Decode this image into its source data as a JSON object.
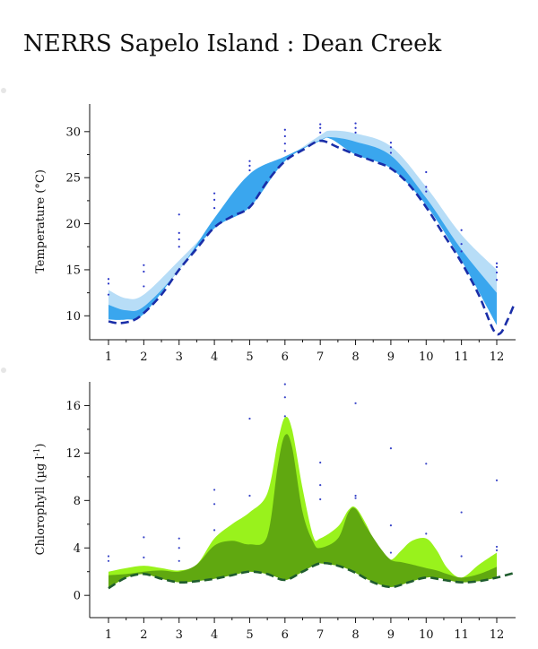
{
  "title": "NERRS Sapelo Island : Dean Creek",
  "chart_data": [
    {
      "type": "area",
      "ylabel": "Temperature (°C)",
      "ylabel_unit": "",
      "xlim": [
        0.8,
        12.5
      ],
      "ylim": [
        7.5,
        33
      ],
      "x_ticks": [
        1,
        2,
        3,
        4,
        5,
        6,
        7,
        8,
        9,
        10,
        11,
        12
      ],
      "x_tick_labels": [
        "1",
        "2",
        "3",
        "4",
        "5",
        "6",
        "7",
        "8",
        "9",
        "10",
        "11",
        "12"
      ],
      "y_ticks": [
        10,
        15,
        20,
        25,
        30
      ],
      "y_tick_labels": [
        "10",
        "15",
        "20",
        "25",
        "30"
      ],
      "colors": {
        "outer": "#b7ddf7",
        "inner": "#3aa6ee",
        "line": "#1a2ea8",
        "dots": "#2a35c8"
      },
      "outer_band": {
        "x": [
          1,
          1.5,
          2,
          3,
          4,
          5,
          6,
          7,
          7.3,
          8,
          9,
          10,
          11,
          12
        ],
        "upper": [
          12.8,
          11.9,
          12.3,
          16,
          20,
          24.5,
          27,
          29.6,
          30.1,
          29.8,
          28.4,
          24,
          18.8,
          15
        ],
        "lower": [
          9.6,
          9.6,
          10.2,
          15,
          19.5,
          21.8,
          26.8,
          29,
          29.2,
          27.5,
          26,
          22,
          16,
          9
        ]
      },
      "inner_band": {
        "x": [
          1,
          1.5,
          2,
          3,
          4,
          5,
          6,
          7,
          7.3,
          8,
          9,
          10,
          11,
          12
        ],
        "upper": [
          11.2,
          10.6,
          11,
          15,
          20.6,
          25.4,
          27.3,
          29.1,
          29.4,
          28.9,
          27.4,
          22.8,
          17.2,
          12.5
        ],
        "lower": [
          9.6,
          9.6,
          10.2,
          15,
          19.5,
          21.8,
          26.8,
          29,
          29.2,
          27.5,
          26,
          22,
          16,
          9
        ]
      },
      "series": [
        {
          "x": [
            1,
            1.3,
            1.7,
            2,
            2.5,
            3,
            3.5,
            4,
            4.5,
            5,
            5.5,
            6,
            6.5,
            7,
            7.5,
            8,
            8.5,
            9,
            9.5,
            10,
            10.5,
            11,
            11.5,
            11.9,
            12.1,
            12.3,
            12.5
          ],
          "values": [
            9.4,
            9.2,
            9.5,
            10.3,
            12.3,
            15,
            17.3,
            19.6,
            20.8,
            21.8,
            24.6,
            26.8,
            28,
            29,
            28.3,
            27.5,
            26.8,
            26,
            24.3,
            21.8,
            18.8,
            15.8,
            12.2,
            8.5,
            8.1,
            9.5,
            11.3
          ]
        }
      ],
      "points": [
        {
          "x": 1,
          "y": 14.0
        },
        {
          "x": 1,
          "y": 13.5
        },
        {
          "x": 1,
          "y": 12.3
        },
        {
          "x": 2,
          "y": 15.5
        },
        {
          "x": 2,
          "y": 14.8
        },
        {
          "x": 2,
          "y": 13.2
        },
        {
          "x": 3,
          "y": 21.0
        },
        {
          "x": 3,
          "y": 19.0
        },
        {
          "x": 3,
          "y": 18.3
        },
        {
          "x": 3,
          "y": 17.5
        },
        {
          "x": 4,
          "y": 23.3
        },
        {
          "x": 4,
          "y": 22.6
        },
        {
          "x": 4,
          "y": 21.7
        },
        {
          "x": 5,
          "y": 26.8
        },
        {
          "x": 5,
          "y": 26.3
        },
        {
          "x": 5,
          "y": 25.8
        },
        {
          "x": 6,
          "y": 30.2
        },
        {
          "x": 6,
          "y": 29.5
        },
        {
          "x": 6,
          "y": 28.7
        },
        {
          "x": 6,
          "y": 27.9
        },
        {
          "x": 7,
          "y": 30.8
        },
        {
          "x": 7,
          "y": 30.4
        },
        {
          "x": 7,
          "y": 29.9
        },
        {
          "x": 8,
          "y": 30.9
        },
        {
          "x": 8,
          "y": 30.4
        },
        {
          "x": 8,
          "y": 29.9
        },
        {
          "x": 9,
          "y": 28.8
        },
        {
          "x": 9,
          "y": 28.3
        },
        {
          "x": 9,
          "y": 27.7
        },
        {
          "x": 10,
          "y": 25.6
        },
        {
          "x": 10,
          "y": 24.0
        },
        {
          "x": 10,
          "y": 23.5
        },
        {
          "x": 11,
          "y": 19.3
        },
        {
          "x": 11,
          "y": 17.8
        },
        {
          "x": 11,
          "y": 17.0
        },
        {
          "x": 12,
          "y": 15.7
        },
        {
          "x": 12,
          "y": 15.3
        },
        {
          "x": 12,
          "y": 14.7
        },
        {
          "x": 12,
          "y": 13.9
        }
      ]
    },
    {
      "type": "area",
      "ylabel": "Chlorophyll (µg l",
      "ylabel_unit": "-1",
      "ylabel_close": ")",
      "xlim": [
        0.8,
        12.5
      ],
      "ylim": [
        -1.8,
        18
      ],
      "x_ticks": [
        1,
        2,
        3,
        4,
        5,
        6,
        7,
        8,
        9,
        10,
        11,
        12
      ],
      "x_tick_labels": [
        "1",
        "2",
        "3",
        "4",
        "5",
        "6",
        "7",
        "8",
        "9",
        "10",
        "11",
        "12"
      ],
      "y_ticks": [
        0,
        4,
        8,
        12,
        16
      ],
      "y_tick_labels": [
        "0",
        "4",
        "8",
        "12",
        "16"
      ],
      "colors": {
        "outer": "#99f21c",
        "inner": "#60a810",
        "line": "#1f5c2e",
        "dots": "#3a46c8"
      },
      "outer_band": {
        "x": [
          1,
          1.5,
          2,
          2.5,
          3,
          3.5,
          4,
          4.5,
          5,
          5.5,
          5.8,
          6,
          6.2,
          6.5,
          6.8,
          7,
          7.5,
          7.8,
          8,
          8.3,
          8.7,
          9,
          9.3,
          9.6,
          10,
          10.3,
          10.6,
          11,
          11.5,
          12
        ],
        "upper": [
          2,
          2.3,
          2.5,
          2.3,
          2.1,
          2.6,
          4.8,
          6,
          7,
          8.6,
          13,
          15,
          14,
          9,
          5,
          4.8,
          5.8,
          7.2,
          7.4,
          6,
          3.5,
          3,
          3.8,
          4.6,
          4.8,
          3.8,
          2.3,
          1.5,
          2.6,
          3.6
        ],
        "lower": [
          0.6,
          1.5,
          1.8,
          1.4,
          1.1,
          1.2,
          1.4,
          1.7,
          2,
          1.8,
          1.5,
          1.3,
          1.5,
          2,
          2.5,
          2.7,
          2.5,
          2.2,
          1.9,
          1.4,
          0.9,
          0.7,
          0.9,
          1.2,
          1.5,
          1.5,
          1.3,
          1.1,
          1.2,
          1.5
        ]
      },
      "inner_band": {
        "x": [
          1,
          1.5,
          2,
          2.5,
          3,
          3.5,
          4,
          4.5,
          5,
          5.5,
          5.8,
          6,
          6.2,
          6.5,
          6.8,
          7,
          7.5,
          7.8,
          8,
          8.3,
          8.7,
          9,
          9.3,
          9.6,
          10,
          10.3,
          10.6,
          11,
          11.5,
          12
        ],
        "upper": [
          1.7,
          1.8,
          2,
          2.1,
          2,
          2.6,
          4.2,
          4.6,
          4.3,
          5,
          11,
          13.5,
          12.5,
          7,
          4.5,
          4,
          4.8,
          7,
          7.3,
          5.8,
          4,
          3,
          2.8,
          2.6,
          2.3,
          2.1,
          1.8,
          1.5,
          1.8,
          2.4
        ],
        "lower": [
          0.6,
          1.5,
          1.8,
          1.4,
          1.1,
          1.2,
          1.4,
          1.7,
          2,
          1.8,
          1.5,
          1.3,
          1.5,
          2,
          2.5,
          2.7,
          2.5,
          2.2,
          1.9,
          1.4,
          0.9,
          0.7,
          0.9,
          1.2,
          1.5,
          1.5,
          1.3,
          1.1,
          1.2,
          1.5
        ]
      },
      "series": [
        {
          "x": [
            1,
            1.5,
            2,
            2.5,
            3,
            3.5,
            4,
            4.5,
            5,
            5.5,
            6,
            6.5,
            7,
            7.5,
            8,
            8.5,
            9,
            9.5,
            10,
            10.5,
            11,
            11.5,
            12,
            12.5
          ],
          "values": [
            0.6,
            1.5,
            1.8,
            1.4,
            1.1,
            1.2,
            1.4,
            1.7,
            2,
            1.8,
            1.3,
            2,
            2.7,
            2.5,
            1.9,
            1.1,
            0.7,
            1.1,
            1.5,
            1.3,
            1.1,
            1.2,
            1.5,
            1.9
          ]
        }
      ],
      "points": [
        {
          "x": 1,
          "y": 3.3
        },
        {
          "x": 1,
          "y": 2.9
        },
        {
          "x": 2,
          "y": 4.9
        },
        {
          "x": 2,
          "y": 3.2
        },
        {
          "x": 3,
          "y": 4.8
        },
        {
          "x": 3,
          "y": 4.0
        },
        {
          "x": 3,
          "y": 2.9
        },
        {
          "x": 4,
          "y": 8.9
        },
        {
          "x": 4,
          "y": 7.7
        },
        {
          "x": 4,
          "y": 5.5
        },
        {
          "x": 5,
          "y": 14.9
        },
        {
          "x": 5,
          "y": 8.4
        },
        {
          "x": 6,
          "y": 17.8
        },
        {
          "x": 6,
          "y": 16.7
        },
        {
          "x": 6,
          "y": 15.1
        },
        {
          "x": 7,
          "y": 11.2
        },
        {
          "x": 7,
          "y": 9.3
        },
        {
          "x": 7,
          "y": 8.1
        },
        {
          "x": 8,
          "y": 16.2
        },
        {
          "x": 8,
          "y": 8.4
        },
        {
          "x": 8,
          "y": 8.2
        },
        {
          "x": 9,
          "y": 12.4
        },
        {
          "x": 9,
          "y": 5.9
        },
        {
          "x": 9,
          "y": 3.6
        },
        {
          "x": 10,
          "y": 11.1
        },
        {
          "x": 10,
          "y": 5.2
        },
        {
          "x": 11,
          "y": 7.0
        },
        {
          "x": 11,
          "y": 3.3
        },
        {
          "x": 12,
          "y": 9.7
        },
        {
          "x": 12,
          "y": 4.1
        },
        {
          "x": 12,
          "y": 3.8
        }
      ]
    }
  ]
}
